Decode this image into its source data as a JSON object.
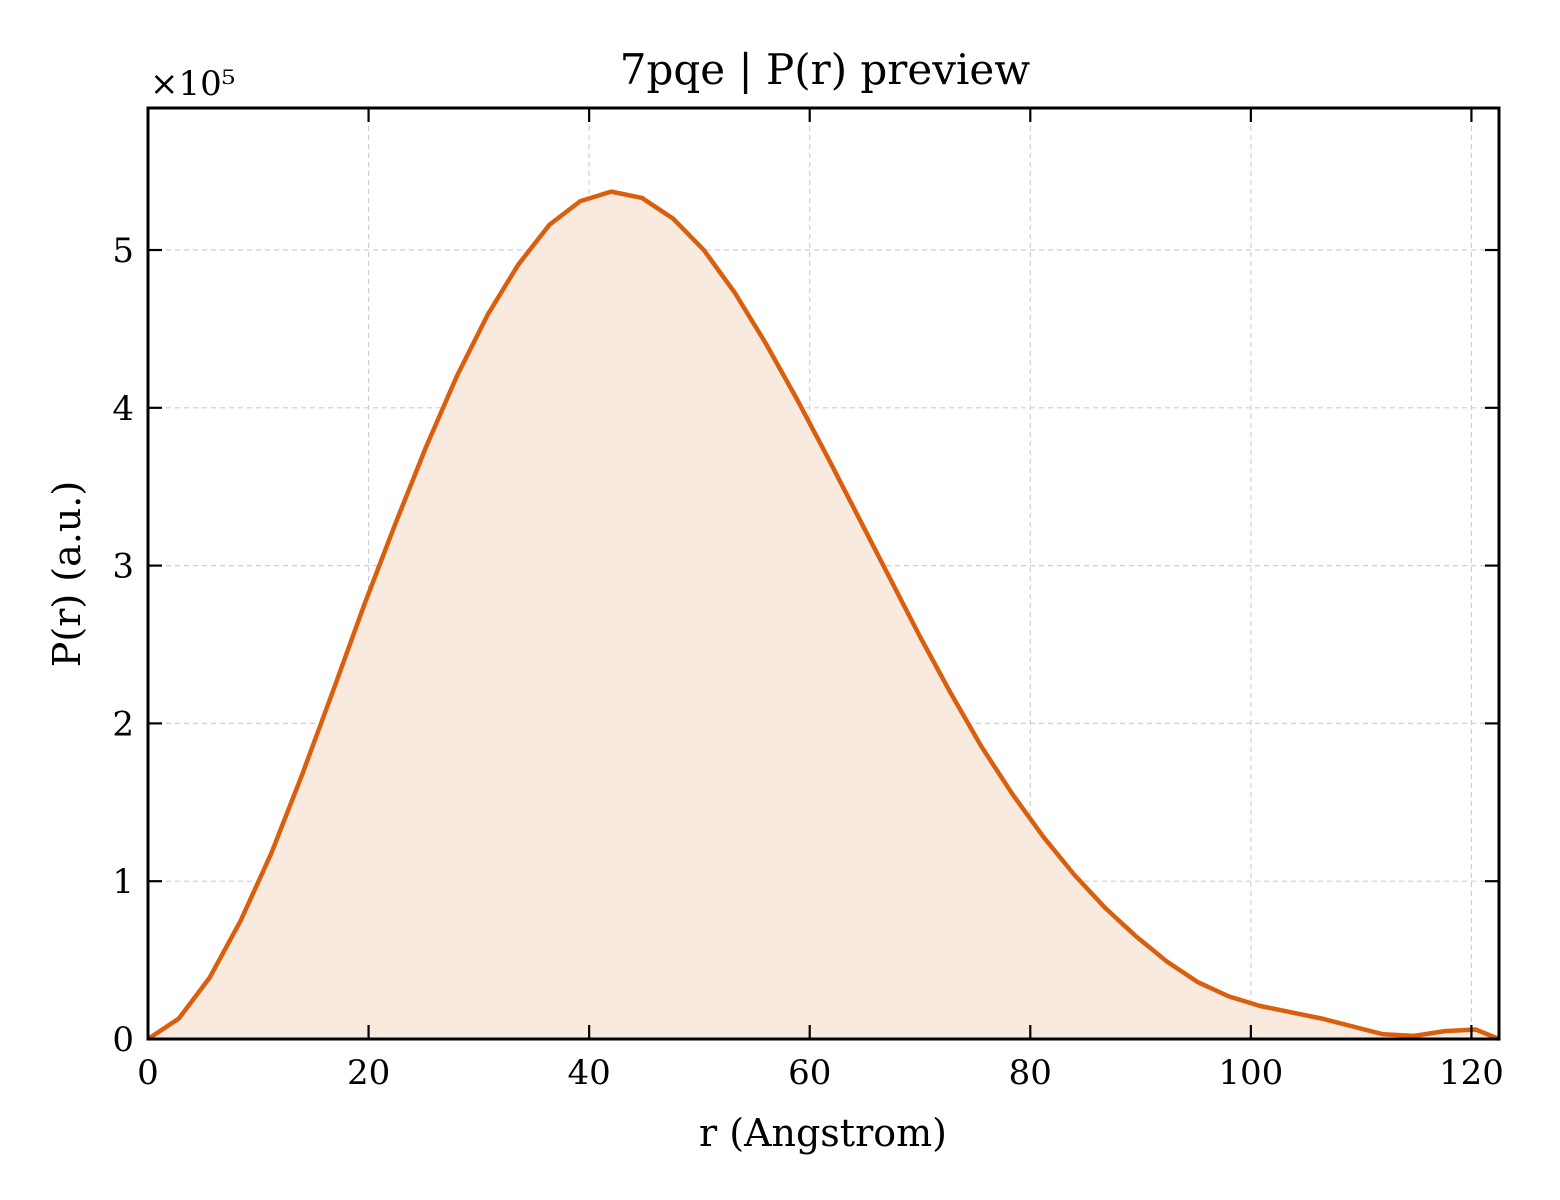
{
  "chart_data": {
    "type": "area",
    "title": "7pqe | P(r) preview",
    "xlabel": "r (Angstrom)",
    "ylabel": "P(r) (a.u.)",
    "y_multiplier_label": "×10⁵",
    "y_scale": 100000,
    "xlim": [
      0,
      122.5
    ],
    "ylim": [
      0,
      5.9
    ],
    "x_ticks": [
      0,
      20,
      40,
      60,
      80,
      100,
      120
    ],
    "y_ticks": [
      0,
      1,
      2,
      3,
      4,
      5
    ],
    "x_tick_labels": [
      "0",
      "20",
      "40",
      "60",
      "80",
      "100",
      "120"
    ],
    "y_tick_labels": [
      "0",
      "1",
      "2",
      "3",
      "4",
      "5"
    ],
    "grid": true,
    "line_color": "#d95f0e",
    "fill_color": "#f9eadf",
    "series": [
      {
        "x": [
          0,
          2.8,
          5.6,
          8.4,
          11.2,
          14.0,
          16.8,
          19.6,
          22.4,
          25.2,
          28.0,
          30.8,
          33.6,
          36.4,
          39.2,
          42.0,
          44.8,
          47.6,
          50.4,
          53.2,
          56.0,
          58.8,
          61.6,
          64.4,
          67.2,
          70.0,
          72.8,
          75.6,
          78.4,
          81.2,
          84.0,
          86.8,
          89.6,
          92.4,
          95.2,
          98.0,
          100.8,
          103.6,
          106.4,
          109.2,
          112.0,
          114.8,
          117.6,
          120.4,
          122.5
        ],
        "y": [
          0.0,
          0.13,
          0.39,
          0.75,
          1.18,
          1.68,
          2.21,
          2.75,
          3.26,
          3.75,
          4.2,
          4.59,
          4.91,
          5.16,
          5.31,
          5.37,
          5.33,
          5.2,
          5.0,
          4.73,
          4.41,
          4.06,
          3.69,
          3.31,
          2.93,
          2.55,
          2.19,
          1.85,
          1.55,
          1.28,
          1.04,
          0.83,
          0.65,
          0.49,
          0.36,
          0.27,
          0.21,
          0.17,
          0.13,
          0.08,
          0.03,
          0.02,
          0.05,
          0.06,
          0.0
        ]
      }
    ]
  }
}
